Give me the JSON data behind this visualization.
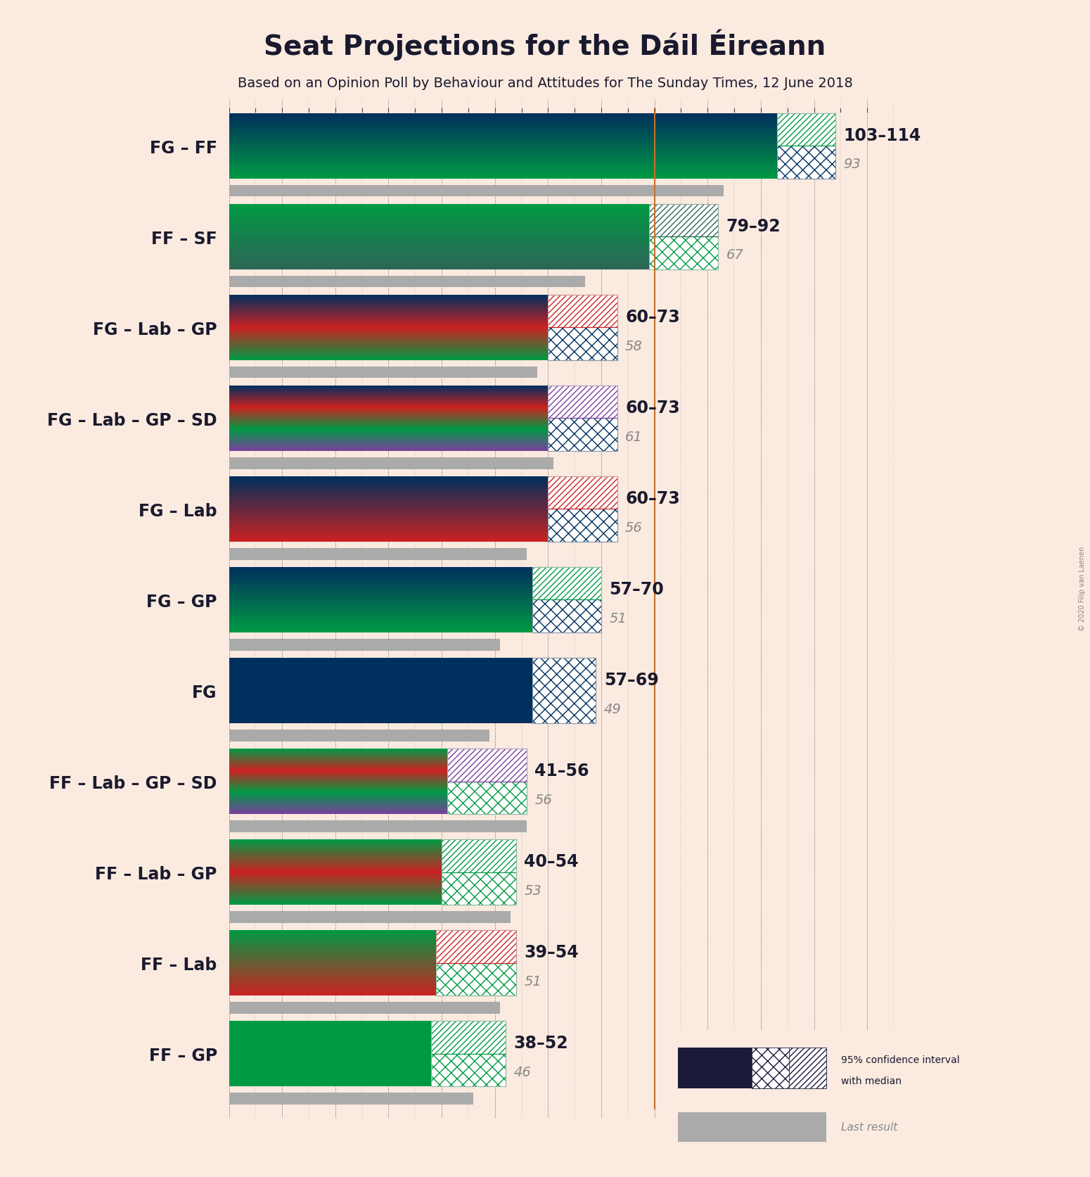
{
  "title": "Seat Projections for the Dáil Éireann",
  "subtitle": "Based on an Opinion Poll by Behaviour and Attitudes for The Sunday Times, 12 June 2018",
  "copyright": "© 2020 Filip van Laenen",
  "background_color": "#faeae0",
  "majority_line": 80,
  "majority_color": "#c8702a",
  "coalitions": [
    {
      "label": "FG – FF",
      "ci_low": 103,
      "ci_high": 114,
      "last": 93,
      "colors": [
        "#00305e",
        "#009a44"
      ],
      "hatch_colors": [
        "#00305e",
        "#009a44"
      ],
      "hatch_styles": [
        "xx",
        "////"
      ]
    },
    {
      "label": "FF – SF",
      "ci_low": 79,
      "ci_high": 92,
      "last": 67,
      "colors": [
        "#009a44",
        "#2e6657"
      ],
      "hatch_colors": [
        "#009a44",
        "#2e6657"
      ],
      "hatch_styles": [
        "xx",
        "////"
      ]
    },
    {
      "label": "FG – Lab – GP",
      "ci_low": 60,
      "ci_high": 73,
      "last": 58,
      "colors": [
        "#00305e",
        "#cc2222",
        "#009a44"
      ],
      "hatch_colors": [
        "#00305e",
        "#cc2222"
      ],
      "hatch_styles": [
        "xx",
        "////"
      ]
    },
    {
      "label": "FG – Lab – GP – SD",
      "ci_low": 60,
      "ci_high": 73,
      "last": 61,
      "colors": [
        "#00305e",
        "#cc2222",
        "#009a44",
        "#7b3f9e"
      ],
      "hatch_colors": [
        "#00305e",
        "#7b3f9e"
      ],
      "hatch_styles": [
        "xx",
        "////"
      ]
    },
    {
      "label": "FG – Lab",
      "ci_low": 60,
      "ci_high": 73,
      "last": 56,
      "colors": [
        "#00305e",
        "#cc2222"
      ],
      "hatch_colors": [
        "#00305e",
        "#cc2222"
      ],
      "hatch_styles": [
        "xx",
        "////"
      ]
    },
    {
      "label": "FG – GP",
      "ci_low": 57,
      "ci_high": 70,
      "last": 51,
      "colors": [
        "#00305e",
        "#009a44"
      ],
      "hatch_colors": [
        "#00305e",
        "#009a44"
      ],
      "hatch_styles": [
        "xx",
        "////"
      ]
    },
    {
      "label": "FG",
      "ci_low": 57,
      "ci_high": 69,
      "last": 49,
      "colors": [
        "#00305e"
      ],
      "hatch_colors": [
        "#00305e"
      ],
      "hatch_styles": [
        "xx"
      ]
    },
    {
      "label": "FF – Lab – GP – SD",
      "ci_low": 41,
      "ci_high": 56,
      "last": 56,
      "colors": [
        "#009a44",
        "#cc2222",
        "#009a44",
        "#7b3f9e"
      ],
      "hatch_colors": [
        "#009a44",
        "#7b3f9e"
      ],
      "hatch_styles": [
        "xx",
        "////"
      ]
    },
    {
      "label": "FF – Lab – GP",
      "ci_low": 40,
      "ci_high": 54,
      "last": 53,
      "colors": [
        "#009a44",
        "#cc2222",
        "#009a44"
      ],
      "hatch_colors": [
        "#009a44",
        "#009a44"
      ],
      "hatch_styles": [
        "xx",
        "////"
      ]
    },
    {
      "label": "FF – Lab",
      "ci_low": 39,
      "ci_high": 54,
      "last": 51,
      "colors": [
        "#009a44",
        "#cc2222"
      ],
      "hatch_colors": [
        "#009a44",
        "#cc2222"
      ],
      "hatch_styles": [
        "xx",
        "////"
      ]
    },
    {
      "label": "FF – GP",
      "ci_low": 38,
      "ci_high": 52,
      "last": 46,
      "colors": [
        "#009a44",
        "#009a44"
      ],
      "hatch_colors": [
        "#009a44",
        "#009a44"
      ],
      "hatch_styles": [
        "xx",
        "////"
      ]
    }
  ],
  "xmax": 125,
  "label_fontsize": 17,
  "range_fontsize": 17,
  "last_fontsize": 14,
  "title_fontsize": 28,
  "subtitle_fontsize": 14
}
